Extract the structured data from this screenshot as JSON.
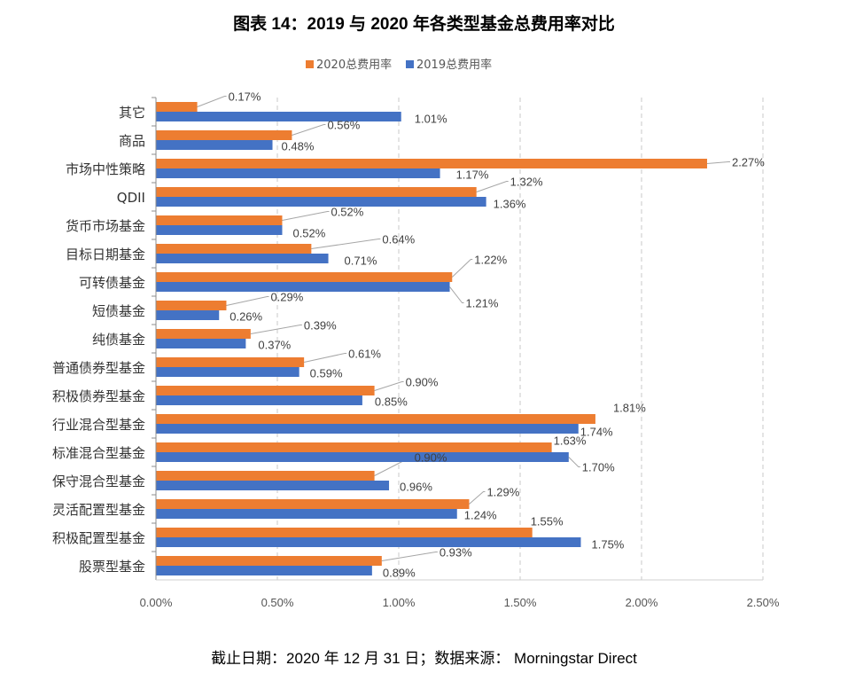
{
  "title": "图表 14：2019 与 2020 年各类型基金总费用率对比",
  "footnote": "截止日期：2020 年 12 月 31 日；数据来源：  Morningstar Direct",
  "chart_data": {
    "type": "bar",
    "orientation": "horizontal",
    "categories": [
      "其它",
      "商品",
      "市场中性策略",
      "QDII",
      "货币市场基金",
      "目标日期基金",
      "可转债基金",
      "短债基金",
      "纯债基金",
      "普通债券型基金",
      "积极债券型基金",
      "行业混合型基金",
      "标准混合型基金",
      "保守混合型基金",
      "灵活配置型基金",
      "积极配置型基金",
      "股票型基金"
    ],
    "series": [
      {
        "name": "2020总费用率",
        "color": "#ED7D31",
        "values": [
          0.17,
          0.56,
          2.27,
          1.32,
          0.52,
          0.64,
          1.22,
          0.29,
          0.39,
          0.61,
          0.9,
          1.81,
          1.63,
          0.9,
          1.29,
          1.55,
          0.93
        ],
        "labels": [
          "0.17%",
          "0.56%",
          "2.27%",
          "1.32%",
          "0.52%",
          "0.64%",
          "1.22%",
          "0.29%",
          "0.39%",
          "0.61%",
          "0.90%",
          "1.81%",
          "1.63%",
          "0.90%",
          "1.29%",
          "1.55%",
          "0.93%"
        ]
      },
      {
        "name": "2019总费用率",
        "color": "#4472C4",
        "values": [
          1.01,
          0.48,
          1.17,
          1.36,
          0.52,
          0.71,
          1.21,
          0.26,
          0.37,
          0.59,
          0.85,
          1.74,
          1.7,
          0.96,
          1.24,
          1.75,
          0.89
        ],
        "labels": [
          "1.01%",
          "0.48%",
          "1.17%",
          "1.36%",
          "0.52%",
          "0.71%",
          "1.21%",
          "0.26%",
          "0.37%",
          "0.59%",
          "0.85%",
          "1.74%",
          "1.70%",
          "0.96%",
          "1.24%",
          "1.75%",
          "0.89%"
        ]
      }
    ],
    "xlim": [
      0,
      2.5
    ],
    "xticks": [
      0,
      0.5,
      1.0,
      1.5,
      2.0,
      2.5
    ],
    "xtick_labels": [
      "0.00%",
      "0.50%",
      "1.00%",
      "1.50%",
      "2.00%",
      "2.50%"
    ],
    "legend_position": "top",
    "gridlines": "vertical-dashed"
  }
}
